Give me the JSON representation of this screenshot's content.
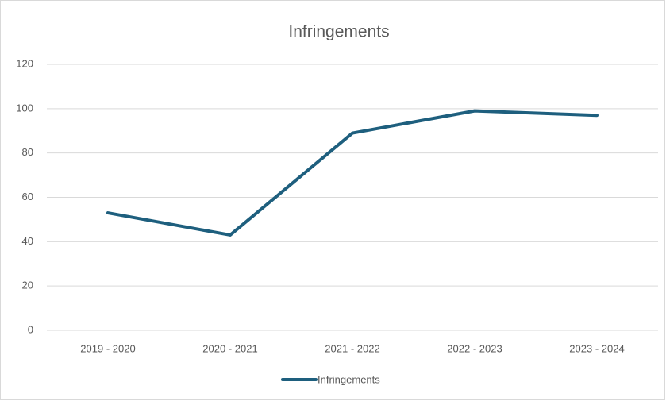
{
  "chart_data": {
    "type": "line",
    "title": "Infringements",
    "categories": [
      "2019 - 2020",
      "2020 - 2021",
      "2021 - 2022",
      "2022 - 2023",
      "2023 - 2024"
    ],
    "series": [
      {
        "name": "Infringements",
        "color": "#1e5f7e",
        "values": [
          53,
          43,
          89,
          99,
          97
        ]
      }
    ],
    "ylim": [
      0,
      120
    ],
    "yticks": [
      0,
      20,
      40,
      60,
      80,
      100,
      120
    ],
    "grid": true,
    "legend": "bottom"
  }
}
